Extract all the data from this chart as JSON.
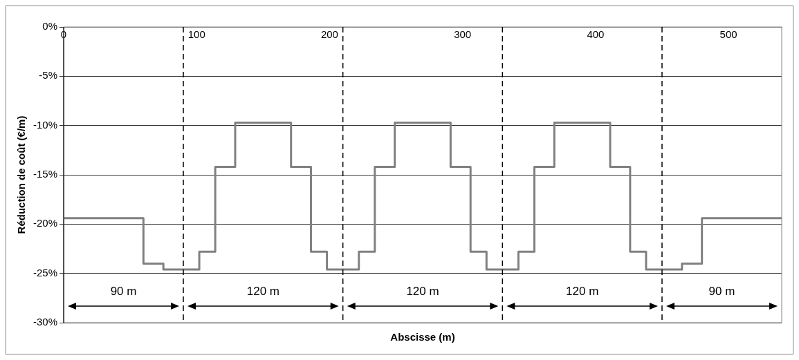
{
  "chart_data": {
    "type": "step",
    "xlabel": "Abscisse (m)",
    "ylabel": "Réduction de coût (€/m)",
    "x": [
      0,
      60,
      75,
      102,
      114,
      129,
      171,
      186,
      198,
      222,
      234,
      249,
      291,
      306,
      318,
      342,
      354,
      369,
      411,
      426,
      438,
      465,
      480,
      540
    ],
    "series": [
      {
        "color": "#808080",
        "values": [
          -19.4,
          -24.0,
          -24.6,
          -22.8,
          -14.2,
          -9.7,
          -14.2,
          -22.8,
          -24.6,
          -22.8,
          -14.2,
          -9.7,
          -14.2,
          -22.8,
          -24.6,
          -22.8,
          -14.2,
          -9.7,
          -14.2,
          -22.8,
          -24.6,
          -24.0,
          -19.4,
          -19.4
        ]
      }
    ],
    "xlim": [
      0,
      540
    ],
    "xticks": [
      0,
      100,
      200,
      300,
      400,
      500
    ],
    "ylim": [
      -30,
      0
    ],
    "yticks": [
      {
        "value": 0,
        "label": "0%"
      },
      {
        "value": -5,
        "label": "-5%"
      },
      {
        "value": -10,
        "label": "-10%"
      },
      {
        "value": -15,
        "label": "-15%"
      },
      {
        "value": -20,
        "label": "-20%"
      },
      {
        "value": -25,
        "label": "-25%"
      },
      {
        "value": -30,
        "label": "-30%"
      }
    ],
    "grid": "y",
    "legend": false,
    "marker": "none",
    "line_style": "solid",
    "ref_lines": [
      {
        "axis": "x",
        "value": 90,
        "color": "#000000",
        "line_style": "dashed"
      },
      {
        "axis": "x",
        "value": 210,
        "color": "#000000",
        "line_style": "dashed"
      },
      {
        "axis": "x",
        "value": 330,
        "color": "#000000",
        "line_style": "dashed"
      },
      {
        "axis": "x",
        "value": 450,
        "color": "#000000",
        "line_style": "dashed"
      }
    ],
    "annotations": [
      "90 m",
      "120 m",
      "120 m",
      "120 m",
      "90 m"
    ]
  }
}
